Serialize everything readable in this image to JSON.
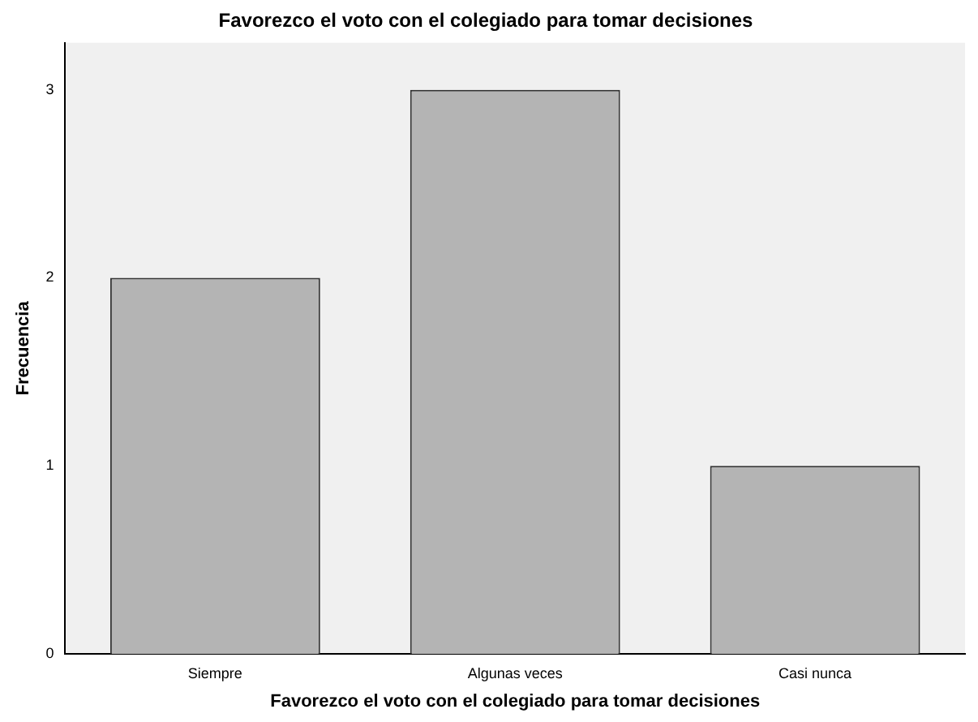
{
  "chart_data": {
    "type": "bar",
    "title": "Favorezco el voto con el colegiado para tomar decisiones",
    "xlabel": "Favorezco el voto con el colegiado para tomar decisiones",
    "ylabel": "Frecuencia",
    "categories": [
      "Siempre",
      "Algunas veces",
      "Casi nunca"
    ],
    "values": [
      2,
      3,
      1
    ],
    "color": "#b4b4b4",
    "ylim": [
      0,
      3.25
    ],
    "yticks": [
      0,
      1,
      2,
      3
    ]
  }
}
